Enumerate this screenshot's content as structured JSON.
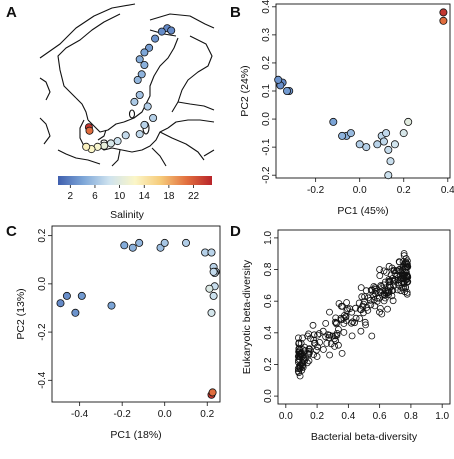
{
  "panel_labels": [
    "A",
    "B",
    "C",
    "D"
  ],
  "colors": {
    "salinity_scale": [
      "#3f5fae",
      "#7ea7d8",
      "#cfe3ef",
      "#fbf6c8",
      "#f6cb7a",
      "#e2703f",
      "#b8242a"
    ],
    "point_stroke": "#111111",
    "land": "#ffffff",
    "coast": "#111111"
  },
  "map": {
    "colorbar": {
      "title": "Salinity",
      "ticks": [
        "2",
        "6",
        "10",
        "14",
        "18",
        "22"
      ],
      "range": [
        0,
        25
      ]
    },
    "stations": [
      {
        "lon": 23.0,
        "lat": 65.4,
        "salinity": 2.4
      },
      {
        "lon": 22.2,
        "lat": 65.1,
        "salinity": 2.6
      },
      {
        "lon": 23.6,
        "lat": 65.2,
        "salinity": 2.5
      },
      {
        "lon": 21.2,
        "lat": 64.5,
        "salinity": 3.0
      },
      {
        "lon": 20.3,
        "lat": 63.7,
        "salinity": 3.6
      },
      {
        "lon": 19.6,
        "lat": 63.3,
        "salinity": 4.1
      },
      {
        "lon": 18.9,
        "lat": 62.7,
        "salinity": 4.6
      },
      {
        "lon": 19.6,
        "lat": 62.2,
        "salinity": 4.8
      },
      {
        "lon": 19.2,
        "lat": 61.4,
        "salinity": 5.0
      },
      {
        "lon": 18.6,
        "lat": 60.9,
        "salinity": 5.3
      },
      {
        "lon": 18.9,
        "lat": 59.6,
        "salinity": 6.0
      },
      {
        "lon": 18.1,
        "lat": 59.0,
        "salinity": 6.5
      },
      {
        "lon": 20.1,
        "lat": 58.6,
        "salinity": 6.8
      },
      {
        "lon": 20.9,
        "lat": 57.6,
        "salinity": 7.0
      },
      {
        "lon": 19.6,
        "lat": 57.0,
        "salinity": 7.2
      },
      {
        "lon": 18.9,
        "lat": 56.2,
        "salinity": 7.5
      },
      {
        "lon": 16.8,
        "lat": 56.1,
        "salinity": 7.8
      },
      {
        "lon": 15.6,
        "lat": 55.6,
        "salinity": 8.2
      },
      {
        "lon": 14.6,
        "lat": 55.4,
        "salinity": 9.0
      },
      {
        "lon": 13.6,
        "lat": 55.2,
        "salinity": 10.5
      },
      {
        "lon": 12.6,
        "lat": 55.1,
        "salinity": 12.0
      },
      {
        "lon": 11.7,
        "lat": 54.9,
        "salinity": 12.5
      },
      {
        "lon": 10.9,
        "lat": 55.1,
        "salinity": 13.0
      },
      {
        "lon": 11.3,
        "lat": 56.8,
        "salinity": 24.0
      },
      {
        "lon": 11.4,
        "lat": 56.5,
        "salinity": 21.0
      }
    ]
  },
  "chart_data": [
    {
      "panel": "B",
      "type": "scatter",
      "xlabel": "PC1 (45%)",
      "ylabel": "PC2 (24%)",
      "xlim": [
        -0.38,
        0.41
      ],
      "ylim": [
        -0.21,
        0.41
      ],
      "xticks": [
        "-0.2",
        "0.0",
        "0.2",
        "0.4"
      ],
      "yticks": [
        "-0.2",
        "-0.1",
        "0.0",
        "0.1",
        "0.2",
        "0.3",
        "0.4"
      ],
      "points": [
        {
          "x": -0.35,
          "y": 0.13,
          "salinity": 2.5
        },
        {
          "x": -0.36,
          "y": 0.12,
          "salinity": 2.8
        },
        {
          "x": -0.37,
          "y": 0.14,
          "salinity": 3.0
        },
        {
          "x": -0.32,
          "y": 0.1,
          "salinity": 3.2
        },
        {
          "x": -0.33,
          "y": 0.1,
          "salinity": 3.4
        },
        {
          "x": -0.12,
          "y": -0.01,
          "salinity": 4.0
        },
        {
          "x": -0.06,
          "y": -0.06,
          "salinity": 4.8
        },
        {
          "x": -0.04,
          "y": -0.05,
          "salinity": 5.5
        },
        {
          "x": -0.08,
          "y": -0.06,
          "salinity": 5.0
        },
        {
          "x": 0.0,
          "y": -0.09,
          "salinity": 6.8
        },
        {
          "x": 0.03,
          "y": -0.1,
          "salinity": 7.0
        },
        {
          "x": 0.08,
          "y": -0.09,
          "salinity": 7.2
        },
        {
          "x": 0.1,
          "y": -0.06,
          "salinity": 7.4
        },
        {
          "x": 0.11,
          "y": -0.08,
          "salinity": 7.5
        },
        {
          "x": 0.12,
          "y": -0.05,
          "salinity": 7.6
        },
        {
          "x": 0.13,
          "y": -0.11,
          "salinity": 7.8
        },
        {
          "x": 0.14,
          "y": -0.15,
          "salinity": 8.0
        },
        {
          "x": 0.13,
          "y": -0.2,
          "salinity": 8.2
        },
        {
          "x": 0.16,
          "y": -0.09,
          "salinity": 8.5
        },
        {
          "x": 0.2,
          "y": -0.05,
          "salinity": 9.0
        },
        {
          "x": 0.22,
          "y": -0.01,
          "salinity": 10.0
        },
        {
          "x": 0.38,
          "y": 0.38,
          "salinity": 24.0
        },
        {
          "x": 0.38,
          "y": 0.35,
          "salinity": 21.0
        }
      ]
    },
    {
      "panel": "C",
      "type": "scatter",
      "xlabel": "PC1 (18%)",
      "ylabel": "PC2 (13%)",
      "xlim": [
        -0.53,
        0.26
      ],
      "ylim": [
        -0.49,
        0.24
      ],
      "xticks": [
        "-0.4",
        "-0.2",
        "0.0",
        "0.2"
      ],
      "yticks": [
        "-0.4",
        "-0.2",
        "0.0",
        "0.2"
      ],
      "points": [
        {
          "x": -0.49,
          "y": -0.08,
          "salinity": 2.5
        },
        {
          "x": -0.46,
          "y": -0.05,
          "salinity": 2.8
        },
        {
          "x": -0.42,
          "y": -0.12,
          "salinity": 3.0
        },
        {
          "x": -0.39,
          "y": -0.05,
          "salinity": 3.4
        },
        {
          "x": -0.25,
          "y": -0.09,
          "salinity": 4.0
        },
        {
          "x": -0.19,
          "y": 0.16,
          "salinity": 4.5
        },
        {
          "x": -0.15,
          "y": 0.15,
          "salinity": 4.8
        },
        {
          "x": -0.12,
          "y": 0.17,
          "salinity": 5.2
        },
        {
          "x": -0.02,
          "y": 0.15,
          "salinity": 5.8
        },
        {
          "x": 0.0,
          "y": 0.17,
          "salinity": 6.3
        },
        {
          "x": 0.1,
          "y": 0.17,
          "salinity": 6.8
        },
        {
          "x": 0.19,
          "y": 0.13,
          "salinity": 7.0
        },
        {
          "x": 0.22,
          "y": 0.13,
          "salinity": 7.2
        },
        {
          "x": 0.23,
          "y": 0.07,
          "salinity": 7.3
        },
        {
          "x": 0.24,
          "y": 0.05,
          "salinity": 7.5
        },
        {
          "x": 0.235,
          "y": 0.045,
          "salinity": 7.6
        },
        {
          "x": 0.23,
          "y": 0.05,
          "salinity": 7.7
        },
        {
          "x": 0.235,
          "y": -0.01,
          "salinity": 7.9
        },
        {
          "x": 0.23,
          "y": -0.05,
          "salinity": 8.2
        },
        {
          "x": 0.22,
          "y": -0.12,
          "salinity": 8.8
        },
        {
          "x": 0.21,
          "y": -0.02,
          "salinity": 9.5
        },
        {
          "x": 0.22,
          "y": -0.46,
          "salinity": 24.0
        },
        {
          "x": 0.225,
          "y": -0.45,
          "salinity": 21.0
        }
      ]
    },
    {
      "panel": "D",
      "type": "scatter",
      "xlabel": "Bacterial beta-diversity",
      "ylabel": "Eukaryotic beta-diversity",
      "xlim": [
        -0.05,
        1.05
      ],
      "ylim": [
        -0.05,
        1.05
      ],
      "xticks": [
        "0.0",
        "0.2",
        "0.4",
        "0.6",
        "0.8",
        "1.0"
      ],
      "yticks": [
        "0.0",
        "0.2",
        "0.4",
        "0.6",
        "0.8",
        "1.0"
      ],
      "trend": {
        "slope": 0.74,
        "intercept": 0.2,
        "spread": 0.09,
        "x_min": 0.08,
        "x_max": 0.78,
        "count": 253
      },
      "points": [
        {
          "x": 0.11,
          "y": 0.2
        },
        {
          "x": 0.09,
          "y": 0.29
        },
        {
          "x": 0.12,
          "y": 0.31
        },
        {
          "x": 0.15,
          "y": 0.3
        },
        {
          "x": 0.2,
          "y": 0.25
        },
        {
          "x": 0.28,
          "y": 0.26
        },
        {
          "x": 0.3,
          "y": 0.38
        },
        {
          "x": 0.36,
          "y": 0.27
        },
        {
          "x": 0.55,
          "y": 0.38
        },
        {
          "x": 0.75,
          "y": 0.85
        },
        {
          "x": 0.77,
          "y": 0.87
        },
        {
          "x": 0.75,
          "y": 0.76
        },
        {
          "x": 0.76,
          "y": 0.66
        },
        {
          "x": 0.6,
          "y": 0.8
        },
        {
          "x": 0.68,
          "y": 0.81
        },
        {
          "x": 0.48,
          "y": 0.41
        },
        {
          "x": 0.51,
          "y": 0.45
        },
        {
          "x": 0.65,
          "y": 0.55
        }
      ]
    }
  ]
}
